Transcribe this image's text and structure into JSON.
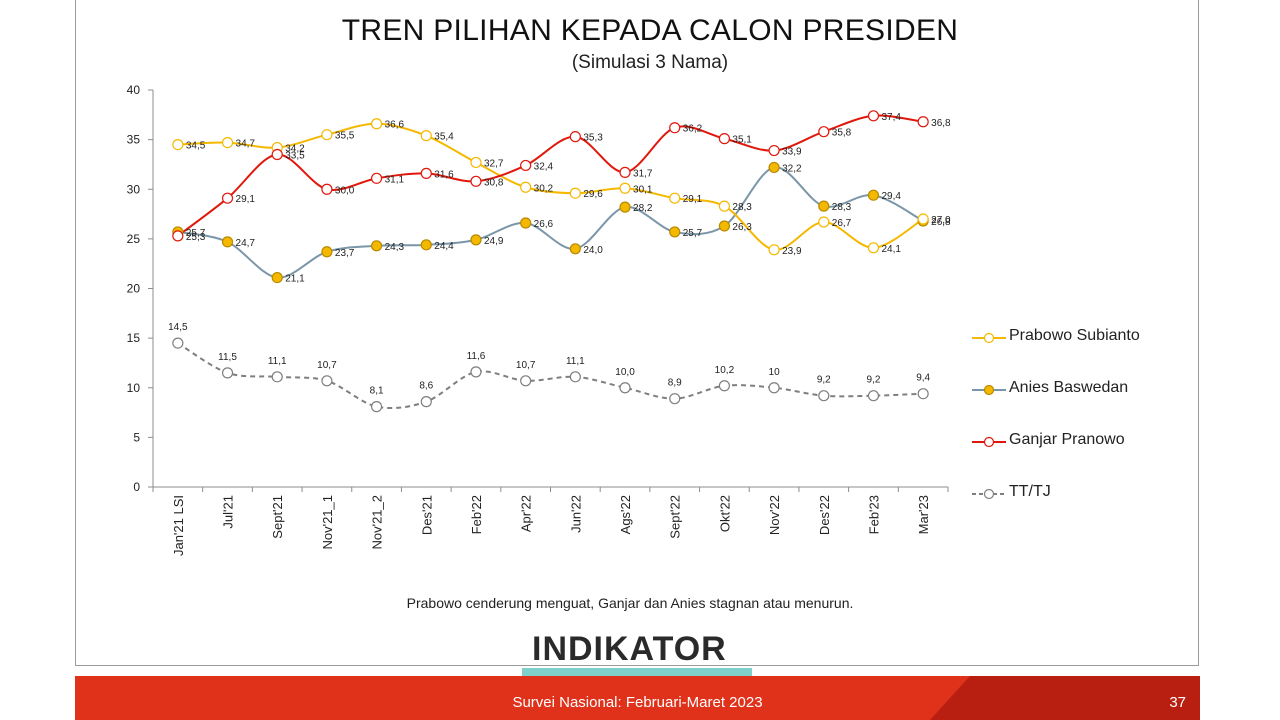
{
  "title": "TREN PILIHAN KEPADA CALON PRESIDEN",
  "subtitle": "(Simulasi 3 Nama)",
  "caption": "Prabowo cenderung menguat, Ganjar dan Anies stagnan atau menurun.",
  "footer": {
    "text": "Survei Nasional: Februari-Maret 2023",
    "page": "37"
  },
  "logo": {
    "text": "INDIKATOR"
  },
  "colors": {
    "footer": "#e0311b",
    "logo_bar": "#7fd0c8"
  },
  "chart_data": {
    "type": "line",
    "title": "TREN PILIHAN KEPADA CALON PRESIDEN",
    "subtitle": "(Simulasi 3 Nama)",
    "categories": [
      "Jan'21 LSI",
      "Jul'21",
      "Sept'21",
      "Nov'21_1",
      "Nov'21_2",
      "Des'21",
      "Feb'22",
      "Apr'22",
      "Jun'22",
      "Ags'22",
      "Sept'22",
      "Okt'22",
      "Nov'22",
      "Des'22",
      "Feb'23",
      "Mar'23"
    ],
    "ylim": [
      0,
      40
    ],
    "yticks": [
      0,
      5,
      10,
      15,
      20,
      25,
      30,
      35,
      40
    ],
    "legend_position": "right",
    "series": [
      {
        "name": "Prabowo Subianto",
        "color": "#f5b800",
        "marker_fill": "#ffffff",
        "dashed": false,
        "values": [
          34.5,
          34.7,
          34.2,
          35.5,
          36.6,
          35.4,
          32.7,
          30.2,
          29.6,
          30.1,
          29.1,
          28.3,
          23.9,
          26.7,
          24.1,
          27.0
        ],
        "labels": [
          "34,5",
          "34,7",
          "34,2",
          "35,5",
          "36,6",
          "35,4",
          "32,7",
          "30,2",
          "29,6",
          "30,1",
          "29,1",
          "28,3",
          "23,9",
          "26,7",
          "24,1",
          "27,0"
        ]
      },
      {
        "name": "Anies Baswedan",
        "color": "#7a96a8",
        "marker_fill": "#f5b800",
        "dashed": false,
        "values": [
          25.7,
          24.7,
          21.1,
          23.7,
          24.3,
          24.4,
          24.9,
          26.6,
          24.0,
          28.2,
          25.7,
          26.3,
          32.2,
          28.3,
          29.4,
          26.8
        ],
        "labels": [
          "25,7",
          "24,7",
          "21,1",
          "23,7",
          "24,3",
          "24,4",
          "24,9",
          "26,6",
          "24,0",
          "28,2",
          "25,7",
          "26,3",
          "32,2",
          "28,3",
          "29,4",
          "26,8"
        ]
      },
      {
        "name": "Ganjar Pranowo",
        "color": "#e0180c",
        "marker_fill": "#ffffff",
        "dashed": false,
        "values": [
          25.3,
          29.1,
          33.5,
          30.0,
          31.1,
          31.6,
          30.8,
          32.4,
          35.3,
          31.7,
          36.2,
          35.1,
          33.9,
          35.8,
          37.4,
          36.8
        ],
        "labels": [
          "25,3",
          "29,1",
          "33,5",
          "30,0",
          "31,1",
          "31,6",
          "30,8",
          "32,4",
          "35,3",
          "31,7",
          "36,2",
          "35,1",
          "33,9",
          "35,8",
          "37,4",
          "36,8"
        ]
      },
      {
        "name": "TT/TJ",
        "color": "#7f7f7f",
        "marker_fill": "#ffffff",
        "dashed": true,
        "values": [
          14.5,
          11.5,
          11.1,
          10.7,
          8.1,
          8.6,
          11.6,
          10.7,
          11.1,
          10.0,
          8.9,
          10.2,
          10.0,
          9.2,
          9.2,
          9.4
        ],
        "labels": [
          "14,5",
          "11,5",
          "11,1",
          "10,7",
          "8,1",
          "8,6",
          "11,6",
          "10,7",
          "11,1",
          "10,0",
          "8,9",
          "10,2",
          "10",
          "9,2",
          "9,2",
          "9,4"
        ]
      }
    ]
  }
}
